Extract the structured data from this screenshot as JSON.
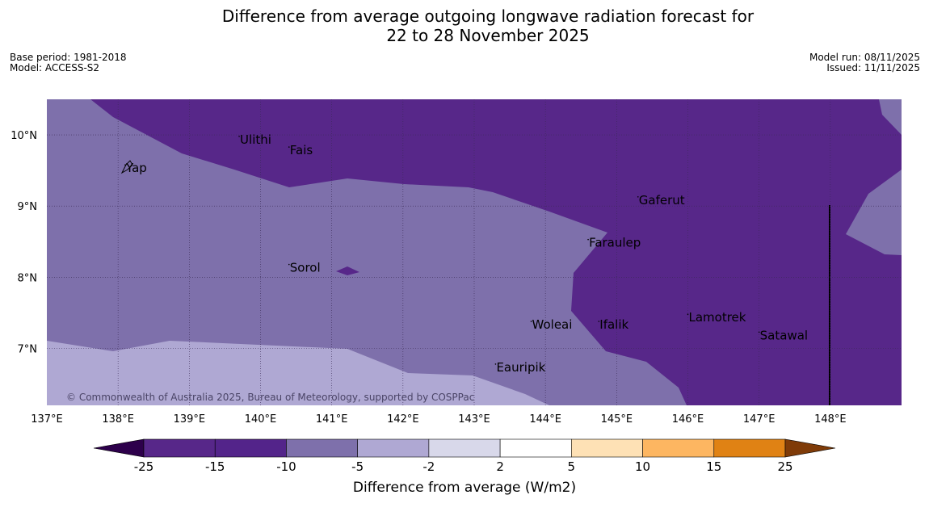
{
  "title_line1": "Difference from average outgoing longwave radiation forecast for",
  "title_line2": "22 to 28 November 2025",
  "base_period": "Base period: 1981-2018",
  "model": "Model: ACCESS-S2",
  "model_run": "Model run: 08/11/2025",
  "issued": "Issued: 11/11/2025",
  "copyright": "© Commonwealth of Australia 2025, Bureau of Meteorology, supported by COSPPac",
  "axes": {
    "lon_ticks": [
      "137°E",
      "138°E",
      "139°E",
      "140°E",
      "141°E",
      "142°E",
      "143°E",
      "144°E",
      "145°E",
      "146°E",
      "147°E",
      "148°E"
    ],
    "lat_ticks": [
      "10°N",
      "9°N",
      "8°N",
      "7°N"
    ]
  },
  "places": [
    {
      "name": "Yap",
      "lon": 138.1,
      "lat": 9.5
    },
    {
      "name": "Ulithi",
      "lon": 139.7,
      "lat": 9.9
    },
    {
      "name": "Fais",
      "lon": 140.4,
      "lat": 9.75
    },
    {
      "name": "Gaferut",
      "lon": 145.3,
      "lat": 9.05
    },
    {
      "name": "Faraulep",
      "lon": 144.6,
      "lat": 8.45
    },
    {
      "name": "Sorol",
      "lon": 140.4,
      "lat": 8.1
    },
    {
      "name": "Lamotrek",
      "lon": 146.0,
      "lat": 7.4
    },
    {
      "name": "Woleai",
      "lon": 143.8,
      "lat": 7.3
    },
    {
      "name": "Ifalik",
      "lon": 144.75,
      "lat": 7.3
    },
    {
      "name": "Satawal",
      "lon": 147.0,
      "lat": 7.15
    },
    {
      "name": "Eauripik",
      "lon": 143.3,
      "lat": 6.7
    }
  ],
  "colorbar": {
    "labels": [
      "-25",
      "-15",
      "-10",
      "-5",
      "-2",
      "2",
      "5",
      "10",
      "15",
      "25"
    ],
    "colors": [
      "#572789",
      "#53248a",
      "#7e70ab",
      "#afa8d3",
      "#d8d8ea",
      "#ffffff",
      "#fee1b5",
      "#fdb661",
      "#e08214",
      "#b35806",
      "#7f3b08"
    ],
    "title": "Difference from average (W/m2)"
  },
  "map_colors": {
    "dark": "#572789",
    "mid": "#7e70ab",
    "light": "#afa8d3"
  }
}
